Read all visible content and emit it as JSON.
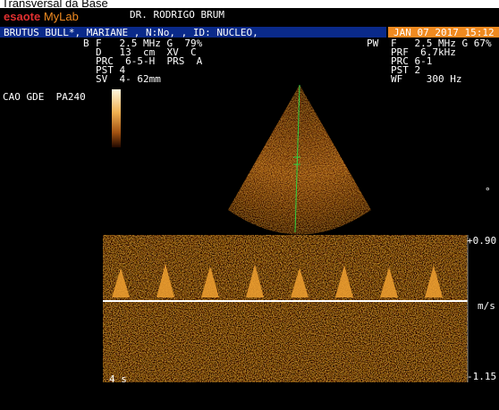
{
  "title": "Transversal da Base",
  "header": {
    "brand": "esaote",
    "product": "MyLab",
    "doctor": "DR. RODRIGO BRUM"
  },
  "patient_bar": {
    "patient": "BRUTUS BULL*, MARIANE , N:No, , ID: NUCLEO,",
    "datetime": "JAN 07 2017 15:12"
  },
  "b_mode": {
    "mode": "B",
    "lines": [
      "F   2.5 MHz G  79%",
      "D   13  cm  XV  C",
      "PRC  6-5-H  PRS  A",
      "PST 4",
      "SV  4- 62mm"
    ]
  },
  "pw_mode": {
    "mode": "PW",
    "lines": [
      "F   2.5 MHz G 67%",
      "PRF  6.7kHz",
      "PRC 6-1",
      "PST 2",
      "WF    300 Hz"
    ]
  },
  "preset": "CAO GDE  PA240",
  "angle_mark": "°",
  "doppler": {
    "max_label": "+0.90",
    "unit": "m/s",
    "min_label": "-1.15",
    "time_scale": "4 s"
  }
}
